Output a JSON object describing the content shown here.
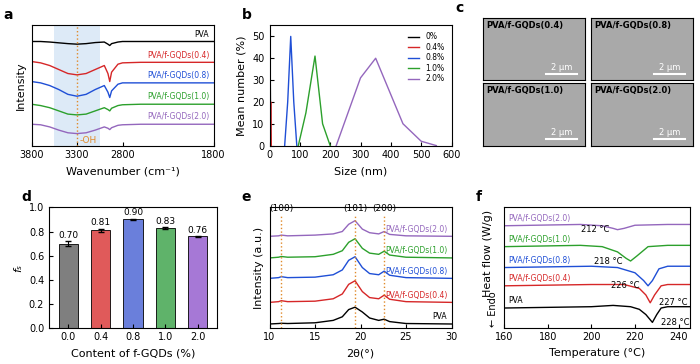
{
  "chart_data": [
    {
      "panel": "a",
      "type": "line",
      "xlabel": "Wavenumber (cm⁻¹)",
      "ylabel": "Intensity",
      "xlim": [
        3800,
        1800
      ],
      "xticks": [
        3800,
        3300,
        2800,
        1800
      ],
      "ylim": [
        0.8,
        5.3
      ],
      "tick_labels": "x",
      "span": [
        3550,
        3050
      ],
      "x": [
        3800,
        3700,
        3600,
        3500,
        3400,
        3300,
        3200,
        3100,
        3000,
        2960,
        2940,
        2920,
        2850,
        2800,
        2600,
        2000,
        1800
      ],
      "series": [
        {
          "name": "PVA",
          "color": "#000000",
          "values": [
            4.7,
            4.7,
            4.68,
            4.65,
            4.62,
            4.6,
            4.62,
            4.66,
            4.68,
            4.6,
            4.55,
            4.62,
            4.68,
            4.7,
            4.7,
            4.7,
            4.7
          ]
        },
        {
          "name": "PVA/f-GQDs(0.4)",
          "color": "#d62728",
          "values": [
            3.95,
            3.9,
            3.8,
            3.65,
            3.5,
            3.45,
            3.5,
            3.65,
            3.8,
            3.5,
            3.2,
            3.55,
            3.85,
            3.9,
            3.92,
            3.92,
            3.92
          ]
        },
        {
          "name": "PVA/f-GQDs(0.8)",
          "color": "#1f4fd6",
          "values": [
            3.2,
            3.15,
            3.05,
            2.9,
            2.72,
            2.65,
            2.72,
            2.9,
            3.05,
            2.8,
            2.6,
            2.85,
            3.1,
            3.15,
            3.15,
            3.15,
            3.15
          ]
        },
        {
          "name": "PVA/f-GQDs(1.0)",
          "color": "#2ca02c",
          "values": [
            2.35,
            2.3,
            2.22,
            2.1,
            1.98,
            1.95,
            1.98,
            2.1,
            2.22,
            2.15,
            2.1,
            2.2,
            2.3,
            2.33,
            2.35,
            2.35,
            2.35
          ]
        },
        {
          "name": "PVA/f-GQDs(2.0)",
          "color": "#9467bd",
          "values": [
            1.6,
            1.58,
            1.5,
            1.38,
            1.28,
            1.25,
            1.28,
            1.38,
            1.5,
            1.45,
            1.4,
            1.47,
            1.56,
            1.58,
            1.6,
            1.6,
            1.6
          ]
        }
      ],
      "annotations": [
        {
          "text": "-OH",
          "x": 3300,
          "y": 1.0
        }
      ]
    },
    {
      "panel": "b",
      "type": "line",
      "xlabel": "Size (nm)",
      "ylabel": "Mean number (%)",
      "xlim": [
        0,
        600
      ],
      "xticks": [
        0,
        100,
        200,
        300,
        400,
        500,
        600
      ],
      "ylim": [
        0,
        55
      ],
      "yticks": [
        0,
        10,
        20,
        30,
        40,
        50
      ],
      "legend": "upper right",
      "series": [
        {
          "name": "0%",
          "color": "#000000",
          "x": [
            0,
            2,
            4
          ],
          "values": [
            0,
            43,
            0
          ]
        },
        {
          "name": "0.4%",
          "color": "#d62728",
          "x": [
            2,
            4,
            6
          ],
          "values": [
            0,
            20,
            0
          ]
        },
        {
          "name": "0.8%",
          "color": "#1f4fd6",
          "x": [
            50,
            60,
            70,
            80,
            90
          ],
          "values": [
            0,
            20,
            50,
            20,
            0
          ]
        },
        {
          "name": "1.0%",
          "color": "#2ca02c",
          "x": [
            95,
            120,
            150,
            175,
            200
          ],
          "values": [
            0,
            15,
            41,
            10,
            0
          ]
        },
        {
          "name": "2.0%",
          "color": "#9467bd",
          "x": [
            220,
            300,
            350,
            440,
            500,
            550
          ],
          "values": [
            0,
            31,
            40,
            10,
            2,
            0
          ]
        }
      ]
    },
    {
      "panel": "c",
      "type": "images",
      "images": [
        {
          "label": "PVA/f-GQDs(0.4)",
          "scale_bar": "2 μm"
        },
        {
          "label": "PVA/f-GQDs(0.8)",
          "scale_bar": "2 μm"
        },
        {
          "label": "PVA/f-GQDs(1.0)",
          "scale_bar": "2 μm"
        },
        {
          "label": "PVA/f-GQDs(2.0)",
          "scale_bar": "2 μm"
        }
      ]
    },
    {
      "panel": "d",
      "type": "bar",
      "xlabel": "Content of f-GQDs (%)",
      "ylabel": "fₛ",
      "categories": [
        "0.0",
        "0.4",
        "0.8",
        "1.0",
        "2.0"
      ],
      "values": [
        0.7,
        0.81,
        0.9,
        0.83,
        0.76
      ],
      "value_labels": [
        "0.70",
        "0.81",
        "0.90",
        "0.83",
        "0.76"
      ],
      "errors": [
        0.02,
        0.015,
        0.008,
        0.008,
        0.003
      ],
      "colors": [
        "#7f7f7f",
        "#e05a5a",
        "#6a7fdb",
        "#5fb36a",
        "#a678d6"
      ],
      "data_labels": true,
      "ylim": [
        0,
        1
      ],
      "yticks": [
        {
          "value": 0,
          "label": "0.0"
        },
        0.2,
        0.4,
        0.6,
        0.8,
        {
          "value": 1,
          "label": "1.0"
        }
      ]
    },
    {
      "panel": "e",
      "type": "line",
      "xlabel": "2θ(°)",
      "ylabel": "Intensity (a.u.)",
      "xlim": [
        10,
        30
      ],
      "xticks": [
        10,
        15,
        20,
        25,
        30
      ],
      "ylim": [
        0,
        5
      ],
      "tick_labels": "x",
      "x": [
        10,
        11,
        11.3,
        12,
        15,
        17,
        18,
        18.7,
        19.4,
        20.2,
        21,
        22,
        22.6,
        23.2,
        25,
        30
      ],
      "series": [
        {
          "name": "PVA",
          "color": "#000000",
          "values": [
            0.15,
            0.17,
            0.18,
            0.17,
            0.2,
            0.3,
            0.45,
            0.75,
            0.85,
            0.65,
            0.4,
            0.3,
            0.35,
            0.25,
            0.17,
            0.15
          ]
        },
        {
          "name": "PVA/f-GQDs(0.4)",
          "color": "#d62728",
          "values": [
            1.05,
            1.08,
            1.12,
            1.08,
            1.1,
            1.2,
            1.4,
            1.8,
            1.95,
            1.5,
            1.25,
            1.2,
            1.35,
            1.18,
            1.08,
            1.05
          ]
        },
        {
          "name": "PVA/f-GQDs(0.8)",
          "color": "#1f4fd6",
          "values": [
            2.05,
            2.08,
            2.12,
            2.08,
            2.1,
            2.2,
            2.4,
            2.8,
            2.95,
            2.5,
            2.25,
            2.2,
            2.35,
            2.18,
            2.08,
            2.05
          ]
        },
        {
          "name": "PVA/f-GQDs(1.0)",
          "color": "#2ca02c",
          "values": [
            2.9,
            2.93,
            2.96,
            2.93,
            2.95,
            3.05,
            3.2,
            3.55,
            3.7,
            3.3,
            3.1,
            3.05,
            3.18,
            3.02,
            2.93,
            2.9
          ]
        },
        {
          "name": "PVA/f-GQDs(2.0)",
          "color": "#9467bd",
          "values": [
            3.8,
            3.82,
            3.85,
            3.82,
            3.85,
            3.9,
            4.0,
            4.3,
            4.45,
            4.1,
            3.95,
            3.9,
            4.0,
            3.88,
            3.82,
            3.8
          ]
        }
      ],
      "annotations": [
        {
          "text": "(100)",
          "x": 11.3,
          "y": 4.7
        },
        {
          "text": "(101)",
          "x": 19.4,
          "y": 4.7
        },
        {
          "text": "(200)",
          "x": 22.6,
          "y": 4.7
        }
      ]
    },
    {
      "panel": "f",
      "type": "line",
      "xlabel": "Temperature (°C)",
      "ylabel": "Heat flow (W/g)",
      "endo_label": "← Endo",
      "xlim": [
        160,
        245
      ],
      "xticks": [
        160,
        180,
        200,
        220,
        240
      ],
      "ylim": [
        -0.3,
        4.3
      ],
      "tick_labels": "x",
      "series": [
        {
          "name": "PVA",
          "color": "#000000",
          "x": [
            160,
            200,
            210,
            218,
            222,
            225,
            228,
            230,
            232,
            235,
            245
          ],
          "values": [
            0.45,
            0.5,
            0.55,
            0.5,
            0.4,
            0.2,
            -0.1,
            0.2,
            0.45,
            0.5,
            0.5
          ]
        },
        {
          "name": "PVA/f-GQDs(0.4)",
          "color": "#d62728",
          "x": [
            160,
            200,
            215,
            222,
            225,
            227,
            229,
            232,
            235,
            245
          ],
          "values": [
            1.3,
            1.35,
            1.35,
            1.2,
            0.95,
            0.65,
            0.95,
            1.3,
            1.35,
            1.35
          ]
        },
        {
          "name": "PVA/f-GQDs(0.8)",
          "color": "#1f4fd6",
          "x": [
            160,
            200,
            212,
            220,
            224,
            226,
            228,
            231,
            235,
            245
          ],
          "values": [
            2.0,
            2.05,
            2.0,
            1.8,
            1.5,
            1.3,
            1.5,
            1.95,
            2.05,
            2.05
          ]
        },
        {
          "name": "PVA/f-GQDs(1.0)",
          "color": "#2ca02c",
          "x": [
            160,
            195,
            205,
            212,
            216,
            218,
            221,
            226,
            235,
            245
          ],
          "values": [
            2.8,
            2.85,
            2.8,
            2.6,
            2.35,
            2.25,
            2.45,
            2.8,
            2.85,
            2.85
          ]
        },
        {
          "name": "PVA/f-GQDs(2.0)",
          "color": "#9467bd",
          "x": [
            160,
            195,
            205,
            210,
            212,
            215,
            220,
            235,
            245
          ],
          "values": [
            3.6,
            3.65,
            3.6,
            3.5,
            3.45,
            3.5,
            3.62,
            3.65,
            3.65
          ]
        }
      ],
      "annotations": [
        {
          "text": "228 °C",
          "x": 228,
          "y": -0.1
        },
        {
          "text": "227 °C",
          "x": 227,
          "y": 0.65
        },
        {
          "text": "226 °C",
          "x": 226,
          "y": 1.3
        },
        {
          "text": "218 °C",
          "x": 218,
          "y": 2.25
        },
        {
          "text": "212 °C",
          "x": 212,
          "y": 3.45
        }
      ]
    }
  ]
}
